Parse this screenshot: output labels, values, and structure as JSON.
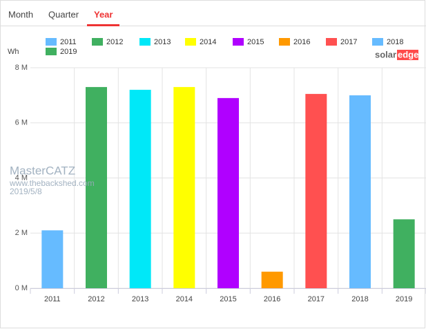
{
  "tabs": [
    "Month",
    "Quarter",
    "Year"
  ],
  "logo": {
    "left": "solar",
    "right": "edge"
  },
  "watermark": {
    "name": "MasterCATZ",
    "site": "www.thebackshed.com",
    "date": "2019/5/8"
  },
  "chart_data": {
    "type": "bar",
    "y_label": "Wh",
    "categories": [
      "2011",
      "2012",
      "2013",
      "2014",
      "2015",
      "2016",
      "2017",
      "2018",
      "2019"
    ],
    "values": [
      2100000,
      7300000,
      7200000,
      7300000,
      6900000,
      600000,
      7050000,
      7000000,
      2500000
    ],
    "colors": [
      "#66bbff",
      "#40b060",
      "#00e8f8",
      "#ffff00",
      "#b000ff",
      "#ff9900",
      "#ff5050",
      "#66bbff",
      "#40b060"
    ],
    "ylim": [
      0,
      8000000
    ],
    "yticks": [
      {
        "value": 0,
        "label": "0 M"
      },
      {
        "value": 2000000,
        "label": "2 M"
      },
      {
        "value": 4000000,
        "label": "4 M"
      },
      {
        "value": 6000000,
        "label": "6 M"
      },
      {
        "value": 8000000,
        "label": "8 M"
      }
    ],
    "grid": true
  }
}
